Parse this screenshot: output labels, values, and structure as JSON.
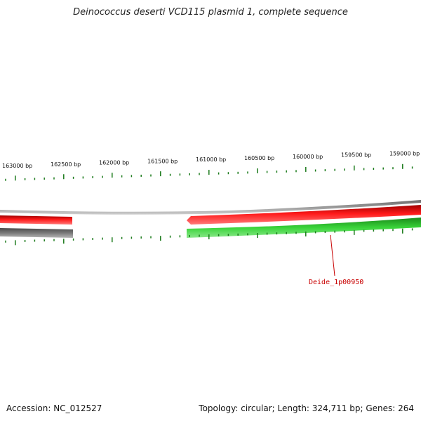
{
  "title": "Deinococcus deserti VCD115 plasmid 1, complete sequence",
  "footer": {
    "accession": "Accession: NC_012527",
    "summary": "Topology: circular; Length: 324,711 bp; Genes: 264"
  },
  "colors": {
    "backbone": "#808080",
    "forward_gene": "#e60000",
    "reverse_gene": "#2ec12e",
    "grey_gene": "#707070",
    "tick": "#1a7a1a",
    "gene_label": "#c80000"
  },
  "ruler": {
    "labels": [
      "163000 bp",
      "162500 bp",
      "162000 bp",
      "161500 bp",
      "161000 bp",
      "160500 bp",
      "160000 bp",
      "159500 bp",
      "159000 bp"
    ]
  },
  "gene_labels": [
    {
      "name": "Deide_1p00950"
    }
  ]
}
